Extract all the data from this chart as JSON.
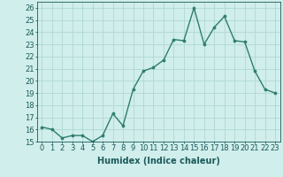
{
  "x": [
    0,
    1,
    2,
    3,
    4,
    5,
    6,
    7,
    8,
    9,
    10,
    11,
    12,
    13,
    14,
    15,
    16,
    17,
    18,
    19,
    20,
    21,
    22,
    23
  ],
  "y": [
    16.2,
    16.0,
    15.3,
    15.5,
    15.5,
    15.0,
    15.5,
    17.3,
    16.3,
    19.3,
    20.8,
    21.1,
    21.7,
    23.4,
    23.3,
    26.0,
    23.0,
    24.4,
    25.3,
    23.3,
    23.2,
    20.8,
    19.3,
    19.0
  ],
  "line_color": "#2d7d6e",
  "marker_color": "#2d7d6e",
  "bg_color": "#d0eeeb",
  "grid_color": "#b0d8d4",
  "xlabel": "Humidex (Indice chaleur)",
  "ylim": [
    15,
    26.5
  ],
  "xlim": [
    -0.5,
    23.5
  ],
  "yticks": [
    15,
    16,
    17,
    18,
    19,
    20,
    21,
    22,
    23,
    24,
    25,
    26
  ],
  "xticks": [
    0,
    1,
    2,
    3,
    4,
    5,
    6,
    7,
    8,
    9,
    10,
    11,
    12,
    13,
    14,
    15,
    16,
    17,
    18,
    19,
    20,
    21,
    22,
    23
  ],
  "xlabel_fontsize": 7,
  "tick_fontsize": 6,
  "line_width": 1.0,
  "marker_size": 2.2
}
